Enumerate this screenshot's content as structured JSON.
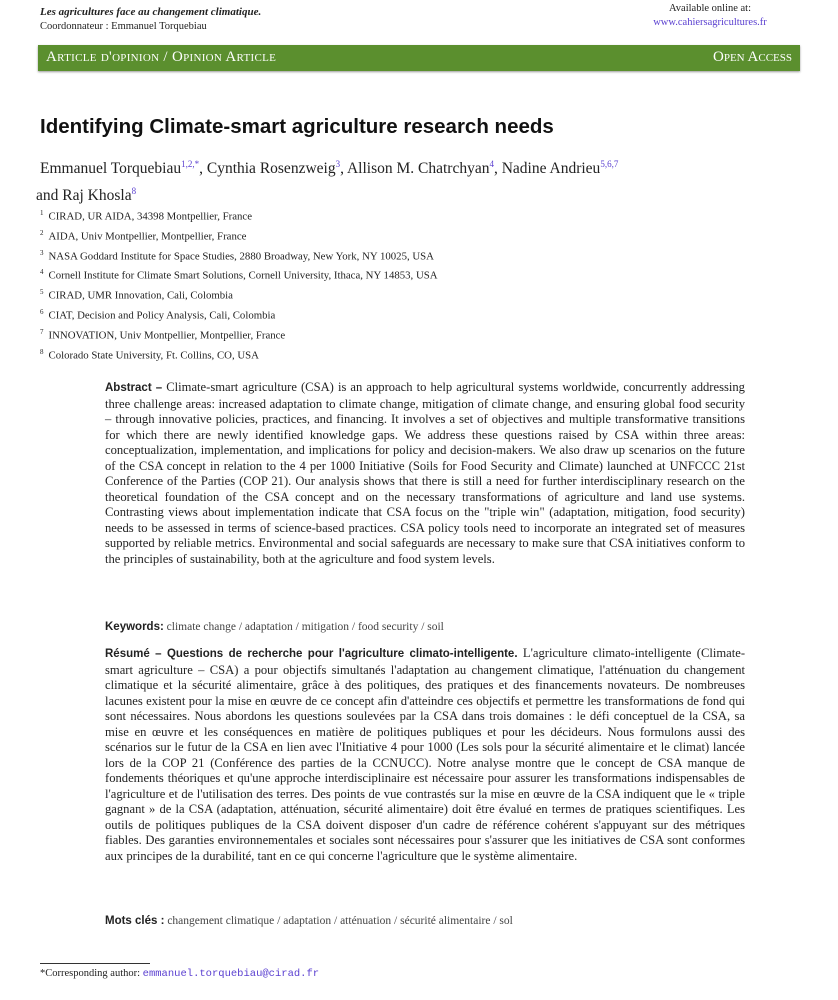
{
  "header": {
    "series": "Les agricultures face au changement climatique.",
    "coordinator": "Coordonnateur : Emmanuel Torquebiau",
    "available_label": "Available online at:",
    "site_link": "www.cahiersagricultures.fr"
  },
  "banner": {
    "article_type": "Article d'opinion / Opinion Article",
    "open_access": "Open Access",
    "open_access_icon": "open-lock-icon",
    "color": "#5b8f2e"
  },
  "title": "Identifying Climate-smart agriculture research needs",
  "authors": [
    {
      "name": "Emmanuel Torquebiau",
      "sup": "1,2,*"
    },
    {
      "name": "Cynthia Rosenzweig",
      "sup": "3"
    },
    {
      "name": "Allison M. Chatrchyan",
      "sup": "4"
    },
    {
      "name": "Nadine Andrieu",
      "sup": "5,6,7"
    },
    {
      "name": "Raj Khosla",
      "sup": "8"
    }
  ],
  "author_sep": ", ",
  "author_and": " and ",
  "affiliations": [
    {
      "n": "1",
      "text": "CIRAD, UR AIDA, 34398 Montpellier, France"
    },
    {
      "n": "2",
      "text": "AIDA, Univ Montpellier, Montpellier, France"
    },
    {
      "n": "3",
      "text": "NASA Goddard Institute for Space Studies, 2880 Broadway, New York, NY 10025, USA"
    },
    {
      "n": "4",
      "text": "Cornell Institute for Climate Smart Solutions, Cornell University, Ithaca, NY 14853, USA"
    },
    {
      "n": "5",
      "text": "CIRAD, UMR Innovation, Cali, Colombia"
    },
    {
      "n": "6",
      "text": "CIAT, Decision and Policy Analysis, Cali, Colombia"
    },
    {
      "n": "7",
      "text": "INNOVATION, Univ Montpellier, Montpellier, France"
    },
    {
      "n": "8",
      "text": "Colorado State University, Ft. Collins, CO, USA"
    }
  ],
  "abstract": {
    "label": "Abstract –",
    "text": "Climate-smart agriculture (CSA) is an approach to help agricultural systems worldwide, concurrently addressing three challenge areas: increased adaptation to climate change, mitigation of climate change, and ensuring global food security – through innovative policies, practices, and financing. It involves a set of objectives and multiple transformative transitions for which there are newly identified knowledge gaps. We address these questions raised by CSA within three areas: conceptualization, implementation, and implications for policy and decision-makers. We also draw up scenarios on the future of the CSA concept in relation to the 4 per 1000 Initiative (Soils for Food Security and Climate) launched at UNFCCC 21st Conference of the Parties (COP 21). Our analysis shows that there is still a need for further interdisciplinary research on the theoretical foundation of the CSA concept and on the necessary transformations of agriculture and land use systems. Contrasting views about implementation indicate that CSA focus on the \"triple win\" (adaptation, mitigation, food security) needs to be assessed in terms of science-based practices. CSA policy tools need to incorporate an integrated set of measures supported by reliable metrics. Environmental and social safeguards are necessary to make sure that CSA initiatives conform to the principles of sustainability, both at the agriculture and food system levels."
  },
  "keywords": {
    "label": "Keywords:",
    "text": "climate change / adaptation / mitigation / food security / soil"
  },
  "resume": {
    "label": "Résumé – Questions de recherche pour l'agriculture climato-intelligente.",
    "text": "L'agriculture climato-intelligente (Climate-smart agriculture – CSA) a pour objectifs simultanés l'adaptation au changement climatique, l'atténuation du changement climatique et la sécurité alimentaire, grâce à des politiques, des pratiques et des financements novateurs. De nombreuses lacunes existent pour la mise en œuvre de ce concept afin d'atteindre ces objectifs et permettre les transformations de fond qui sont nécessaires. Nous abordons les questions soulevées par la CSA dans trois domaines : le défi conceptuel de la CSA, sa mise en œuvre et les conséquences en matière de politiques publiques et pour les décideurs. Nous formulons aussi des scénarios sur le futur de la CSA en lien avec l'Initiative 4 pour 1000 (Les sols pour la sécurité alimentaire et le climat) lancée lors de la COP 21 (Conférence des parties de la CCNUCC). Notre analyse montre que le concept de CSA manque de fondements théoriques et qu'une approche interdisciplinaire est nécessaire pour assurer les transformations indispensables de l'agriculture et de l'utilisation des terres. Des points de vue contrastés sur la mise en œuvre de la CSA indiquent que le « triple gagnant » de la CSA (adaptation, atténuation, sécurité alimentaire) doit être évalué en termes de pratiques scientifiques. Les outils de politiques publiques de la CSA doivent disposer d'un cadre de référence cohérent s'appuyant sur des métriques fiables. Des garanties environnementales et sociales sont nécessaires pour s'assurer que les initiatives de CSA sont conformes aux principes de la durabilité, tant en ce qui concerne l'agriculture que le système alimentaire."
  },
  "mots_cles": {
    "label": "Mots clés :",
    "text": "changement climatique / adaptation / atténuation / sécurité alimentaire / sol"
  },
  "footnote": {
    "label": "*Corresponding author:",
    "email": "emmanuel.torquebiau@cirad.fr"
  }
}
